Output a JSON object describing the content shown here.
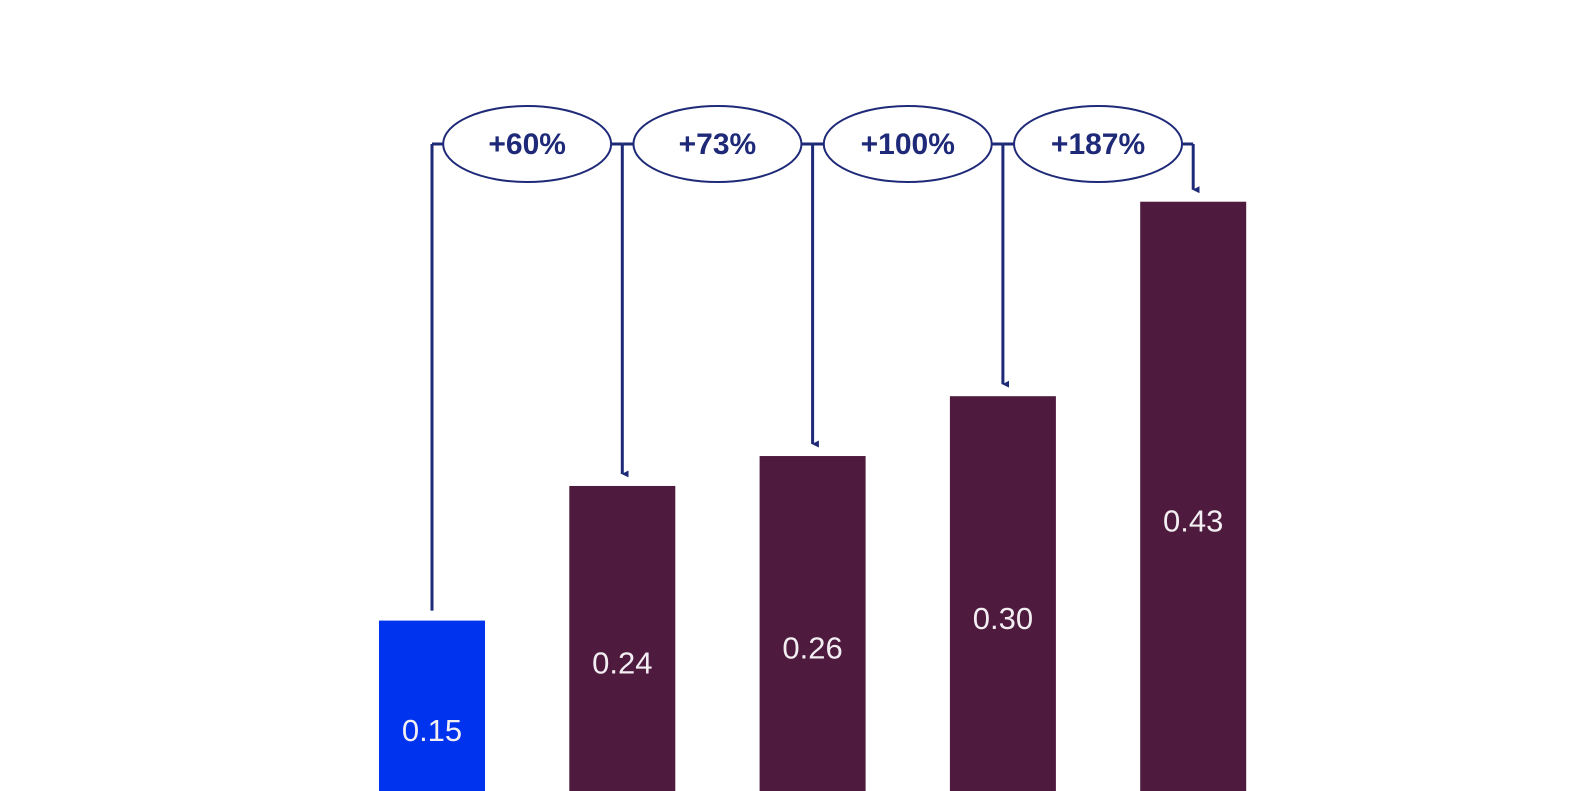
{
  "chart_data": {
    "type": "bar",
    "values": [
      0.15,
      0.24,
      0.26,
      0.3,
      0.43
    ],
    "value_labels": [
      "0.15",
      "0.24",
      "0.26",
      "0.30",
      "0.43"
    ],
    "colors": [
      "#0033ee",
      "#4e1a3d",
      "#4e1a3d",
      "#4e1a3d",
      "#4e1a3d"
    ],
    "annotations": [
      "+60%",
      "+73%",
      "+100%",
      "+187%"
    ]
  }
}
